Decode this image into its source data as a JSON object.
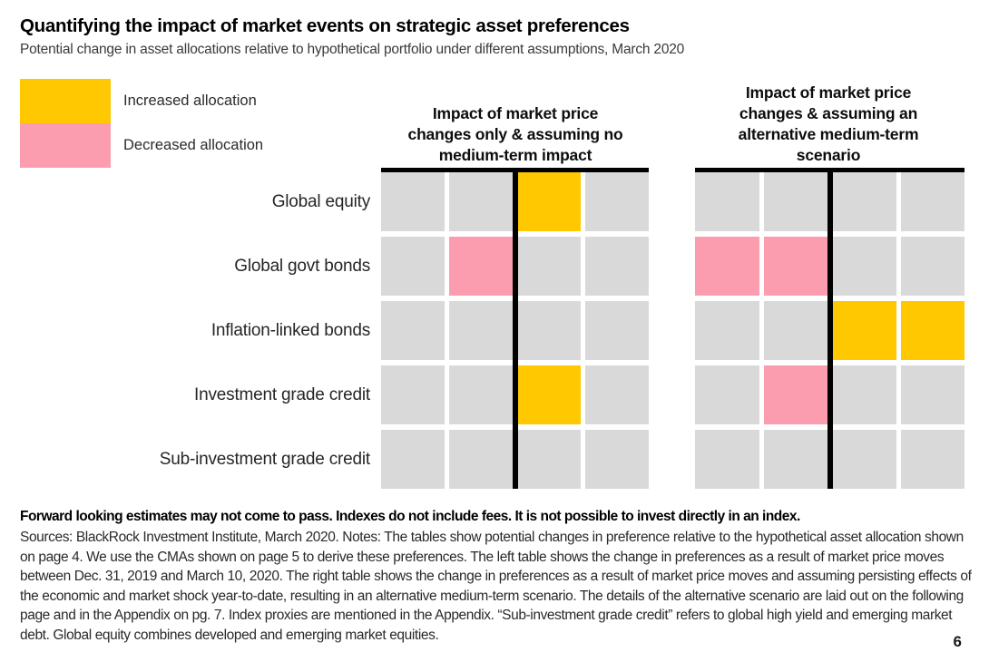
{
  "header": {
    "title": "Quantifying the impact of market events on strategic asset preferences",
    "subtitle": "Potential change in asset allocations relative to hypothetical portfolio under different assumptions, March 2020"
  },
  "legend": {
    "items": [
      {
        "label": "Increased allocation",
        "state": "increased",
        "color": "#FFC800"
      },
      {
        "label": "Decreased allocation",
        "state": "decreased",
        "color": "#FB9DAF"
      }
    ]
  },
  "chart_data": {
    "type": "heatmap",
    "title": "Quantifying the impact of market events on strategic asset preferences",
    "subtitle": "Potential change in asset allocations relative to hypothetical portfolio under different assumptions, March 2020",
    "legend_position": "top-left",
    "row_labels": [
      "Global equity",
      "Global govt bonds",
      "Inflation-linked bonds",
      "Investment grade credit",
      "Sub-investment grade credit"
    ],
    "cell_colors": {
      "none": "#D9D9D9",
      "increased": "#FFC800",
      "decreased": "#FB9DAF"
    },
    "cell_meanings": {
      "none": "no change",
      "increased": "Increased allocation",
      "decreased": "Decreased allocation"
    },
    "tables": [
      {
        "title": "Impact of market price changes only & assuming no medium-term impact",
        "title_lines": [
          "Impact of market price",
          "changes only & assuming no",
          "medium-term impact"
        ],
        "columns": 4,
        "cells": [
          [
            "none",
            "none",
            "increased",
            "none"
          ],
          [
            "none",
            "decreased",
            "none",
            "none"
          ],
          [
            "none",
            "none",
            "none",
            "none"
          ],
          [
            "none",
            "none",
            "increased",
            "none"
          ],
          [
            "none",
            "none",
            "none",
            "none"
          ]
        ]
      },
      {
        "title": "Impact of market price changes & assuming an alternative medium-term scenario",
        "title_lines": [
          "Impact of market price",
          "changes & assuming an",
          "alternative medium-term",
          "scenario"
        ],
        "columns": 4,
        "cells": [
          [
            "none",
            "none",
            "none",
            "none"
          ],
          [
            "decreased",
            "decreased",
            "none",
            "none"
          ],
          [
            "none",
            "none",
            "increased",
            "increased"
          ],
          [
            "none",
            "decreased",
            "none",
            "none"
          ],
          [
            "none",
            "none",
            "none",
            "none"
          ]
        ]
      }
    ]
  },
  "footnotes": {
    "bold_line": "Forward looking estimates may not come to pass. Indexes do not include fees. It is not possible to invest directly in an index.",
    "body": "Sources: BlackRock Investment Institute, March 2020. Notes: The tables show potential changes in preference relative to the hypothetical asset allocation shown on page 4. We use the CMAs shown on page 5 to derive these preferences. The left table shows the change in preferences as a result of market price moves between Dec. 31, 2019 and March 10, 2020. The right table shows the change in preferences as a result of market price moves and assuming persisting effects of the economic and market shock year-to-date, resulting in an alternative medium-term scenario. The details of the alternative scenario are laid out on the following page and in the Appendix on pg. 7. Index proxies are mentioned in the Appendix. “Sub-investment grade credit” refers to global high yield and emerging market debt. Global equity combines developed and emerging market equities."
  },
  "page_number": "6"
}
